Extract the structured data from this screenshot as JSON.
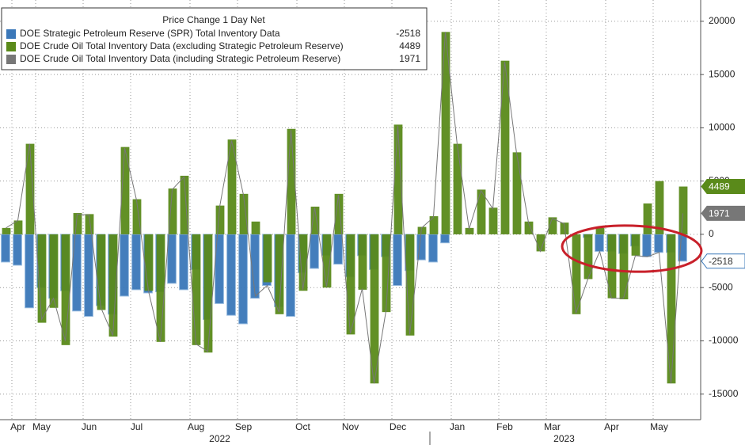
{
  "chart_data": {
    "type": "bar",
    "legend_title": "Price Change 1 Day Net",
    "categories": [
      null,
      "Apr",
      null,
      "May",
      null,
      null,
      null,
      "Jun",
      null,
      null,
      null,
      "Jul",
      null,
      null,
      null,
      null,
      "Aug",
      null,
      null,
      null,
      "Sep",
      null,
      null,
      null,
      null,
      "Oct",
      null,
      null,
      null,
      "Nov",
      null,
      null,
      null,
      "Dec",
      null,
      null,
      null,
      null,
      "Jan",
      null,
      null,
      null,
      "Feb",
      null,
      null,
      null,
      "Mar",
      null,
      null,
      null,
      null,
      "Apr",
      null,
      null,
      null,
      "May",
      null,
      null
    ],
    "year_categories": [
      null,
      null,
      null,
      null,
      null,
      null,
      null,
      null,
      null,
      null,
      null,
      null,
      null,
      null,
      null,
      null,
      null,
      null,
      "2022",
      null,
      null,
      null,
      null,
      null,
      null,
      null,
      null,
      null,
      null,
      null,
      null,
      null,
      null,
      null,
      null,
      null,
      null,
      null,
      null,
      null,
      null,
      null,
      null,
      null,
      null,
      null,
      null,
      "2023",
      null,
      null,
      null,
      null,
      null,
      null,
      null,
      null,
      null,
      null
    ],
    "series": [
      {
        "name": "DOE Strategic Petroleum Reserve (SPR) Total Inventory Data",
        "type": "bar",
        "color": "#3b78b9",
        "values": [
          -2600,
          -2900,
          -6900,
          -5000,
          -6000,
          -5300,
          -7200,
          -7700,
          -6700,
          -7500,
          -5800,
          -5200,
          -5500,
          -5400,
          -4600,
          -5200,
          -3300,
          -8000,
          -6500,
          -7600,
          -8400,
          -6000,
          -4800,
          -6800,
          -7700,
          -3600,
          -3200,
          -2000,
          -2800,
          -4000,
          -2000,
          -3300,
          -2100,
          -4800,
          -3400,
          -2400,
          -2600,
          -800,
          0,
          0,
          0,
          0,
          0,
          0,
          0,
          0,
          0,
          0,
          0,
          -300,
          -1600,
          -1600,
          -1800,
          -1100,
          -2100,
          -1700,
          -1700,
          -2518
        ]
      },
      {
        "name": "DOE Crude Oil Total Inventory Data (excluding Strategic Petroleum Reserve)",
        "type": "bar",
        "color": "#5a8a1a",
        "values": [
          600,
          1300,
          8500,
          -8300,
          -6900,
          -10400,
          2000,
          1900,
          -7100,
          -9600,
          8200,
          3300,
          -5300,
          -10100,
          4300,
          5500,
          -10400,
          -11100,
          2700,
          8900,
          3800,
          1200,
          -4500,
          -7500,
          9900,
          -5300,
          2600,
          -5000,
          3800,
          -9400,
          -5200,
          -14000,
          -7300,
          10300,
          -9500,
          700,
          1700,
          19000,
          8500,
          600,
          4200,
          2500,
          16300,
          7700,
          1200,
          -1600,
          1600,
          1100,
          -7500,
          -4200,
          600,
          -6000,
          -6100,
          -2000,
          2900,
          5000,
          -14000,
          4489
        ]
      },
      {
        "name": "DOE Crude Oil Total Inventory Data (including Strategic Petroleum Reserve)",
        "type": "line",
        "color": "#777777",
        "values": [
          600,
          1300,
          8500,
          -8000,
          -6000,
          -10000,
          1900,
          1800,
          -6900,
          -9500,
          8100,
          3200,
          -5300,
          -10100,
          4200,
          5400,
          -10300,
          -11000,
          2600,
          8800,
          3700,
          -5800,
          -4800,
          -7300,
          9800,
          -5200,
          2500,
          -4900,
          3700,
          -9300,
          -5100,
          -14000,
          -7200,
          10200,
          -9400,
          600,
          1600,
          19000,
          8400,
          500,
          4100,
          2400,
          16200,
          7600,
          1100,
          -1600,
          1500,
          1000,
          -7400,
          -4200,
          -1600,
          -6000,
          -6000,
          -2000,
          -2100,
          -1700,
          -14000,
          1971
        ]
      }
    ],
    "ylim": [
      -17400,
      22000
    ],
    "yticks": [
      -15000,
      -10000,
      -5000,
      0,
      5000,
      10000,
      15000,
      20000
    ],
    "grid": true,
    "legend": "top-left"
  }
}
